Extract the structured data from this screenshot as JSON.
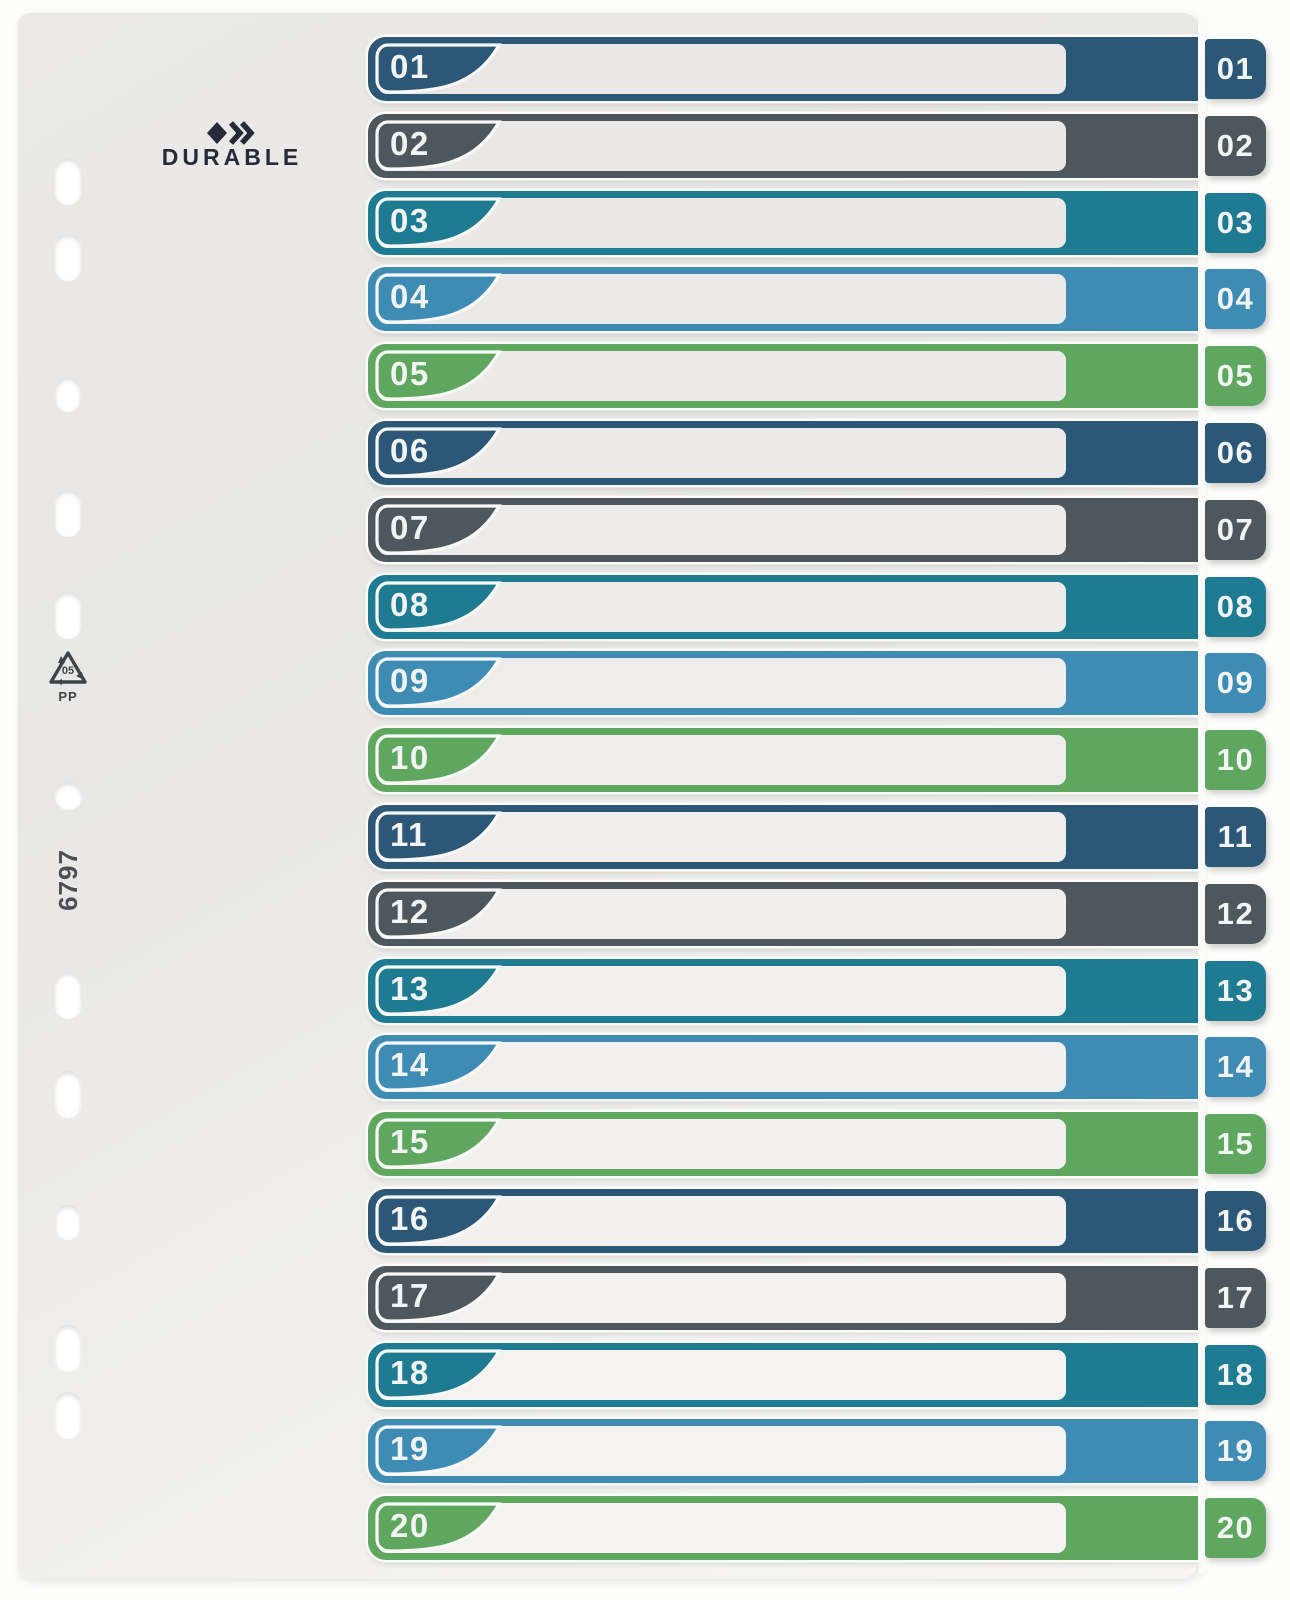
{
  "product": {
    "brand": "DURABLE",
    "product_code": "6797",
    "recycling_code": "05",
    "recycling_material": "PP"
  },
  "colors": {
    "palette": {
      "navy": "#2d5777",
      "slate": "#4e575e",
      "teal": "#1e7b91",
      "blue": "#3e8bb4",
      "green": "#5fa75f"
    },
    "number_text": "#f1f4f3",
    "sheet": "#e9e8e6",
    "logo_text": "#262b3a"
  },
  "icons": {
    "logo_mark": "diamond-double-chevron-icon",
    "recycling": "recycling-triangle-icon"
  },
  "rows": [
    {
      "label": "01",
      "color": "navy"
    },
    {
      "label": "02",
      "color": "slate"
    },
    {
      "label": "03",
      "color": "teal"
    },
    {
      "label": "04",
      "color": "blue"
    },
    {
      "label": "05",
      "color": "green"
    },
    {
      "label": "06",
      "color": "navy"
    },
    {
      "label": "07",
      "color": "slate"
    },
    {
      "label": "08",
      "color": "teal"
    },
    {
      "label": "09",
      "color": "blue"
    },
    {
      "label": "10",
      "color": "green"
    },
    {
      "label": "11",
      "color": "navy"
    },
    {
      "label": "12",
      "color": "slate"
    },
    {
      "label": "13",
      "color": "teal"
    },
    {
      "label": "14",
      "color": "blue"
    },
    {
      "label": "15",
      "color": "green"
    },
    {
      "label": "16",
      "color": "navy"
    },
    {
      "label": "17",
      "color": "slate"
    },
    {
      "label": "18",
      "color": "teal"
    },
    {
      "label": "19",
      "color": "blue"
    },
    {
      "label": "20",
      "color": "green"
    }
  ]
}
